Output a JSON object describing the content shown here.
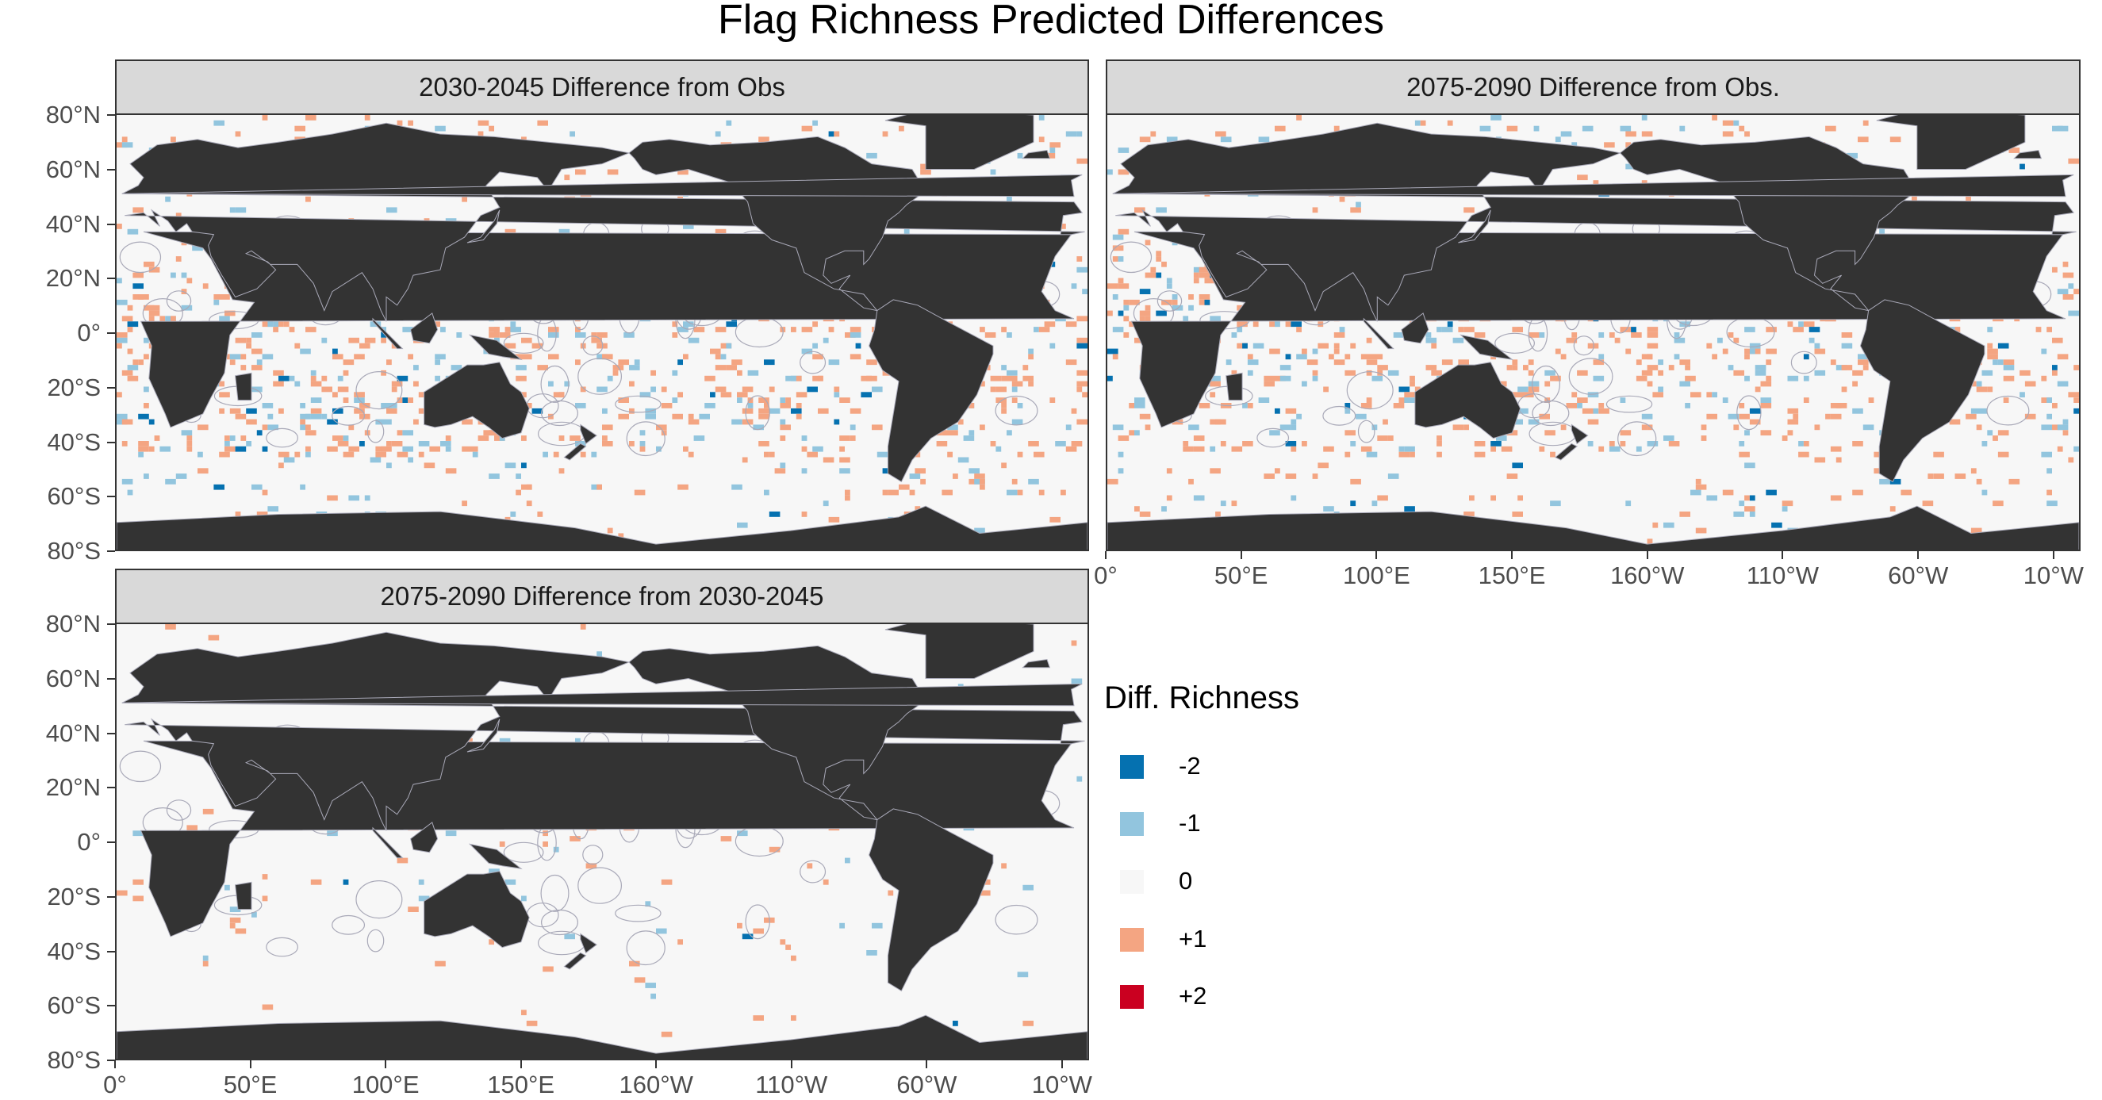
{
  "title": "Flag Richness Predicted Differences",
  "panels": [
    {
      "strip": "2030-2045 Difference from Obs"
    },
    {
      "strip": "2075-2090 Difference from Obs."
    },
    {
      "strip": "2075-2090 Difference from 2030-2045"
    }
  ],
  "y_axis_labels": [
    "80°N",
    "60°N",
    "40°N",
    "20°N",
    "0°",
    "20°S",
    "40°S",
    "60°S",
    "80°S"
  ],
  "x_axis_labels": [
    "0°",
    "50°E",
    "100°E",
    "150°E",
    "160°W",
    "110°W",
    "60°W",
    "10°W"
  ],
  "legend": {
    "title": "Diff. Richness",
    "items": [
      {
        "label": "-2",
        "color": "#0571b0"
      },
      {
        "label": "-1",
        "color": "#92c5de"
      },
      {
        "label": "0",
        "color": "#f7f7f7"
      },
      {
        "label": "+1",
        "color": "#f4a582"
      },
      {
        "label": "+2",
        "color": "#ca0020"
      }
    ]
  },
  "colors": {
    "land": "#333333",
    "ocean": "#f7f7f7",
    "eez_lines": "#a9a9b8"
  }
}
